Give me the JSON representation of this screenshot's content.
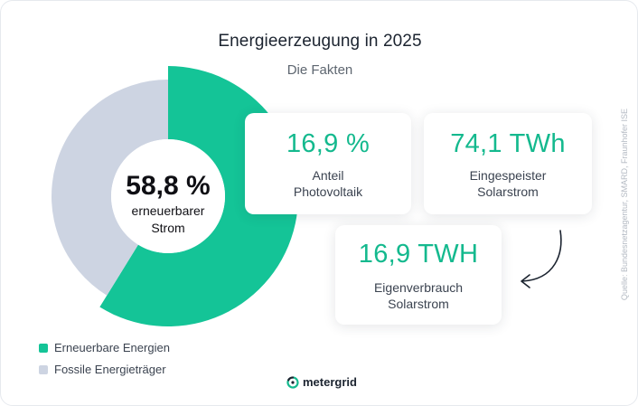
{
  "header": {
    "title": "Energieerzeugung in 2025",
    "subtitle": "Die Fakten"
  },
  "chart_data": {
    "type": "pie",
    "variant": "donut",
    "title": "Energieerzeugung in 2025",
    "series": [
      {
        "name": "Erneuerbare Energien",
        "value": 58.8,
        "color": "#14c497"
      },
      {
        "name": "Fossile Energieträger",
        "value": 41.2,
        "color": "#cdd4e2"
      }
    ],
    "center_value": "58,8 %",
    "center_label_line1": "erneuerbarer",
    "center_label_line2": "Strom",
    "legend_position": "bottom-left"
  },
  "stats": [
    {
      "value": "16,9 %",
      "label_line1": "Anteil",
      "label_line2": "Photovoltaik"
    },
    {
      "value": "74,1 TWh",
      "label_line1": "Eingespeister",
      "label_line2": "Solarstrom"
    },
    {
      "value": "16,9 TWH",
      "label_line1": "Eigenverbrauch",
      "label_line2": "Solarstrom"
    }
  ],
  "legend": [
    {
      "label": "Erneuerbare Energien",
      "color": "#14c497"
    },
    {
      "label": "Fossile Energieträger",
      "color": "#cdd4e2"
    }
  ],
  "source": "Quelle: Bundesnetzagentur, SMARD, Fraunhofer ISE",
  "brand": {
    "name": "metergrid",
    "icon": "metergrid-logo-icon"
  },
  "colors": {
    "accent": "#14b98e",
    "text": "#1c2430"
  }
}
